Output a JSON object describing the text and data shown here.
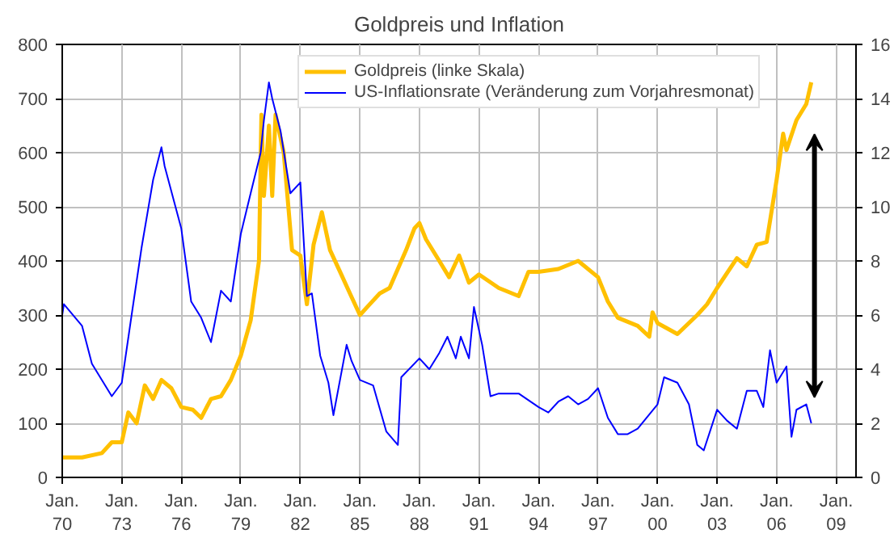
{
  "chart_data": {
    "type": "line",
    "title": "Goldpreis und Inflation",
    "xlim": [
      "1970-01",
      "2010-01"
    ],
    "xticks": [
      {
        "value": "1970-01",
        "label": "Jan.\n70"
      },
      {
        "value": "1973-01",
        "label": "Jan.\n73"
      },
      {
        "value": "1976-01",
        "label": "Jan.\n76"
      },
      {
        "value": "1979-01",
        "label": "Jan.\n79"
      },
      {
        "value": "1982-01",
        "label": "Jan.\n82"
      },
      {
        "value": "1985-01",
        "label": "Jan.\n85"
      },
      {
        "value": "1988-01",
        "label": "Jan.\n88"
      },
      {
        "value": "1991-01",
        "label": "Jan.\n91"
      },
      {
        "value": "1994-01",
        "label": "Jan.\n94"
      },
      {
        "value": "1997-01",
        "label": "Jan.\n97"
      },
      {
        "value": "2000-01",
        "label": "Jan.\n00"
      },
      {
        "value": "2003-01",
        "label": "Jan.\n03"
      },
      {
        "value": "2006-01",
        "label": "Jan.\n06"
      },
      {
        "value": "2009-01",
        "label": "Jan.\n09"
      }
    ],
    "ylim": [
      0,
      800
    ],
    "yticks": [
      0,
      100,
      200,
      300,
      400,
      500,
      600,
      700,
      800
    ],
    "y2lim": [
      0,
      16
    ],
    "y2ticks": [
      0,
      2,
      4,
      6,
      8,
      10,
      12,
      14,
      16
    ],
    "grid": true,
    "legend": "top",
    "line_style": "solid",
    "marker": "none",
    "series": [
      {
        "name": "Goldpreis (linke Skala)",
        "color": "#ffc000",
        "x": [
          "1970-01",
          "1971-01",
          "1972-01",
          "1972-07",
          "1973-01",
          "1973-05",
          "1973-10",
          "1974-03",
          "1974-08",
          "1975-01",
          "1975-07",
          "1976-01",
          "1976-08",
          "1977-01",
          "1977-07",
          "1978-01",
          "1978-07",
          "1979-01",
          "1979-07",
          "1979-12",
          "1980-01-15",
          "1980-03",
          "1980-06",
          "1980-08",
          "1980-10",
          "1981-03",
          "1981-08",
          "1982-01",
          "1982-05",
          "1982-09",
          "1983-02",
          "1983-07",
          "1984-01",
          "1984-07",
          "1985-01",
          "1985-07",
          "1986-01",
          "1986-07",
          "1987-05",
          "1987-10",
          "1988-01",
          "1988-05",
          "1989-01",
          "1989-07",
          "1990-01",
          "1990-07",
          "1991-01",
          "1992-01",
          "1993-01",
          "1993-07",
          "1994-01",
          "1995-01",
          "1996-01",
          "1997-01",
          "1997-07",
          "1998-01",
          "1999-01",
          "1999-08",
          "1999-10",
          "2000-01",
          "2001-01",
          "2002-01",
          "2002-07",
          "2003-01",
          "2004-01",
          "2004-07",
          "2005-01",
          "2005-07",
          "2006-01",
          "2006-05",
          "2006-07",
          "2007-01",
          "2007-07",
          "2007-10"
        ],
        "values": [
          37,
          37,
          45,
          65,
          65,
          120,
          100,
          170,
          145,
          180,
          165,
          130,
          125,
          110,
          145,
          150,
          180,
          225,
          290,
          400,
          670,
          520,
          650,
          520,
          670,
          600,
          420,
          410,
          320,
          430,
          490,
          420,
          380,
          340,
          300,
          320,
          340,
          350,
          420,
          460,
          470,
          440,
          400,
          370,
          410,
          360,
          375,
          350,
          335,
          380,
          380,
          385,
          400,
          370,
          325,
          295,
          280,
          260,
          305,
          285,
          265,
          300,
          320,
          350,
          405,
          390,
          430,
          435,
          550,
          635,
          605,
          660,
          690,
          730
        ]
      },
      {
        "name": "US-Inflationsrate (Veränderung zum Vorjahresmonat)",
        "color": "#0000ff",
        "axis": "y2",
        "x": [
          "1970-01",
          "1970-02",
          "1971-01",
          "1971-07",
          "1972-01",
          "1972-07",
          "1973-01",
          "1973-07",
          "1974-01",
          "1974-08",
          "1975-01",
          "1975-03",
          "1976-01",
          "1976-07",
          "1977-01",
          "1977-07",
          "1978-01",
          "1978-07",
          "1979-01",
          "1979-07",
          "1980-01",
          "1980-03",
          "1980-06",
          "1980-08",
          "1981-01",
          "1981-07",
          "1982-01",
          "1982-05",
          "1982-08",
          "1983-01",
          "1983-06",
          "1983-09",
          "1984-05",
          "1984-08",
          "1985-01",
          "1985-09",
          "1986-05",
          "1986-12",
          "1987-02",
          "1988-01",
          "1988-07",
          "1989-01",
          "1989-06",
          "1989-11",
          "1990-02",
          "1990-07",
          "1990-10",
          "1991-03",
          "1991-08",
          "1992-01",
          "1993-01",
          "1994-01",
          "1994-07",
          "1995-01",
          "1995-07",
          "1996-01",
          "1996-07",
          "1997-01",
          "1997-07",
          "1998-01",
          "1998-07",
          "1999-01",
          "2000-01",
          "2000-05",
          "2001-01",
          "2001-08",
          "2002-01",
          "2002-05",
          "2003-01",
          "2003-07",
          "2004-01",
          "2004-07",
          "2005-01",
          "2005-05",
          "2005-09",
          "2006-01",
          "2006-07",
          "2006-10",
          "2007-01",
          "2007-07",
          "2007-10"
        ],
        "values": [
          6.0,
          6.4,
          5.6,
          4.2,
          3.6,
          3.0,
          3.5,
          6,
          8.5,
          11,
          12.2,
          11.5,
          9.2,
          6.5,
          5.9,
          5.0,
          6.9,
          6.5,
          9,
          10.5,
          12,
          13.2,
          14.6,
          14,
          12.8,
          10.5,
          10.9,
          6.7,
          6.8,
          4.5,
          3.5,
          2.3,
          4.9,
          4.3,
          3.6,
          3.4,
          1.7,
          1.2,
          3.7,
          4.4,
          4.0,
          4.6,
          5.2,
          4.4,
          5.2,
          4.4,
          6.3,
          4.9,
          3.0,
          3.1,
          3.1,
          2.6,
          2.4,
          2.8,
          3.0,
          2.7,
          2.9,
          3.3,
          2.2,
          1.6,
          1.6,
          1.8,
          2.7,
          3.7,
          3.5,
          2.7,
          1.2,
          1.0,
          2.5,
          2.1,
          1.8,
          3.2,
          3.2,
          2.6,
          4.7,
          3.5,
          4.1,
          1.5,
          2.5,
          2.7,
          2.0
        ]
      }
    ]
  }
}
